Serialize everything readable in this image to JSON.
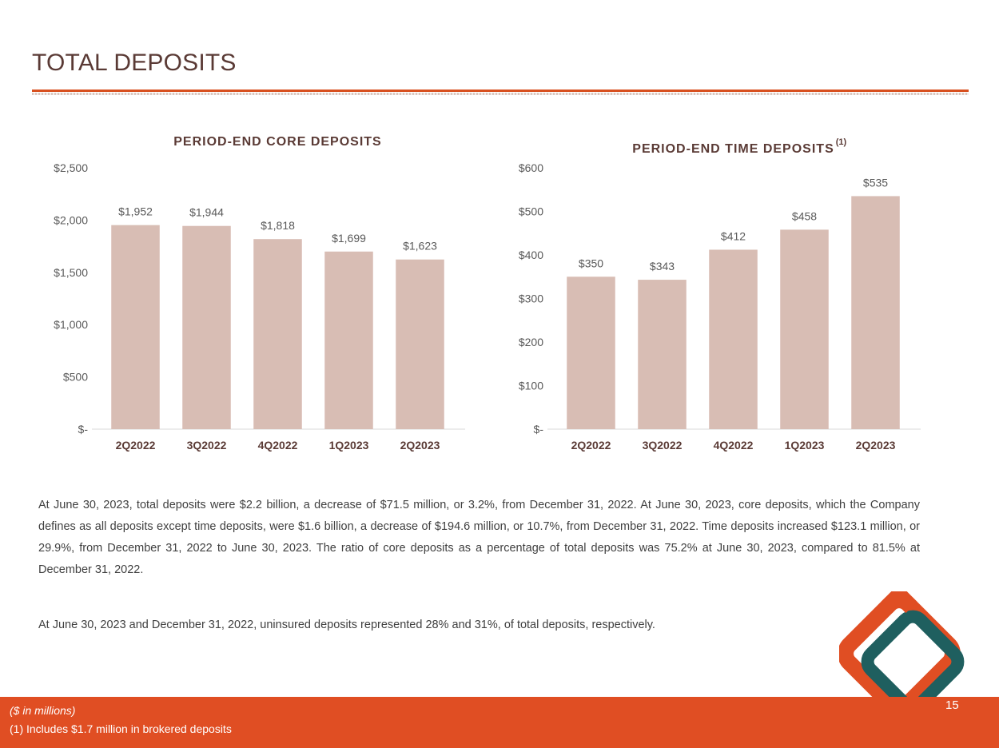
{
  "page": {
    "title": "TOTAL DEPOSITS",
    "page_number": "15"
  },
  "chart_data": [
    {
      "type": "bar",
      "title": "PERIOD-END CORE DEPOSITS",
      "title_superscript": "",
      "categories": [
        "2Q2022",
        "3Q2022",
        "4Q2022",
        "1Q2023",
        "2Q2023"
      ],
      "values": [
        1952,
        1944,
        1818,
        1699,
        1623
      ],
      "data_labels": [
        "$1,952",
        "$1,944",
        "$1,818",
        "$1,699",
        "$1,623"
      ],
      "ylim": [
        0,
        2500
      ],
      "yticks": [
        0,
        500,
        1000,
        1500,
        2000,
        2500
      ],
      "ytick_labels": [
        "$-",
        "$500",
        "$1,000",
        "$1,500",
        "$2,000",
        "$2,500"
      ],
      "xlabel": "",
      "ylabel": "",
      "grid": false,
      "bar_color": "#d8bdb4"
    },
    {
      "type": "bar",
      "title": "PERIOD-END TIME DEPOSITS",
      "title_superscript": "(1)",
      "categories": [
        "2Q2022",
        "3Q2022",
        "4Q2022",
        "1Q2023",
        "2Q2023"
      ],
      "values": [
        350,
        343,
        412,
        458,
        535
      ],
      "data_labels": [
        "$350",
        "$343",
        "$412",
        "$458",
        "$535"
      ],
      "ylim": [
        0,
        600
      ],
      "yticks": [
        0,
        100,
        200,
        300,
        400,
        500,
        600
      ],
      "ytick_labels": [
        "$-",
        "$100",
        "$200",
        "$300",
        "$400",
        "$500",
        "$600"
      ],
      "xlabel": "",
      "ylabel": "",
      "grid": false,
      "bar_color": "#d8bdb4"
    }
  ],
  "text": {
    "paragraph1": "At June 30, 2023, total deposits were $2.2 billion, a decrease of $71.5 million, or 3.2%, from December 31, 2022. At June 30, 2023, core deposits, which the Company defines as all deposits except time deposits, were $1.6 billion, a decrease of $194.6 million, or 10.7%, from December 31, 2022. Time deposits increased $123.1 million, or 29.9%, from December 31, 2022 to June 30, 2023. The ratio of core deposits as a percentage of total deposits was 75.2% at June 30, 2023, compared to 81.5% at December 31, 2022.",
    "paragraph2": "At June 30, 2023 and December 31, 2022, uninsured deposits represented 28% and 31%, of total deposits, respectively."
  },
  "footer": {
    "note_units": "($ in millions)",
    "note_1": "(1) Includes $1.7 million in brokered deposits"
  },
  "colors": {
    "accent": "#e04e23",
    "title": "#5a3a35",
    "logo_teal": "#1f5f5f",
    "logo_orange": "#e04e23"
  }
}
